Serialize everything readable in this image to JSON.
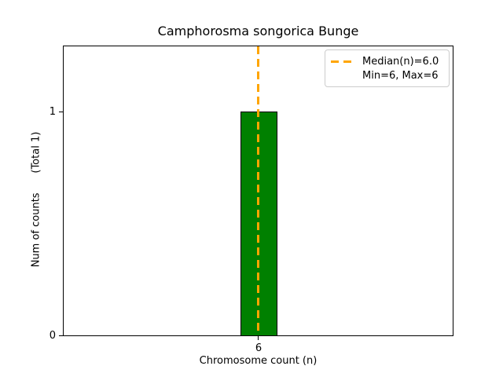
{
  "chart_data": {
    "type": "bar",
    "title": "Camphorosma songorica Bunge",
    "xlabel": "Chromosome count (n)",
    "ylabel": "Num of counts      (Total 1)",
    "categories": [
      "6"
    ],
    "values": [
      1
    ],
    "total_counts": 1,
    "bar_fill_color": "#008000",
    "bar_edge_color": "#000000",
    "median_line": {
      "value": 6.0,
      "orientation": "vertical",
      "style": "dashed",
      "color": "#FFA500"
    },
    "stats": {
      "median": 6.0,
      "min": 6,
      "max": 6
    },
    "xtick_labels": [
      "6"
    ],
    "ytick_labels": [
      "0",
      "1"
    ],
    "ylim": [
      0,
      1.3
    ],
    "grid": false,
    "legend": {
      "position": "upper-right",
      "items": [
        {
          "label": "Median(n)=6.0",
          "marker": "orange-dashed-line"
        },
        {
          "label": "Min=6, Max=6",
          "marker": "none"
        }
      ]
    }
  }
}
